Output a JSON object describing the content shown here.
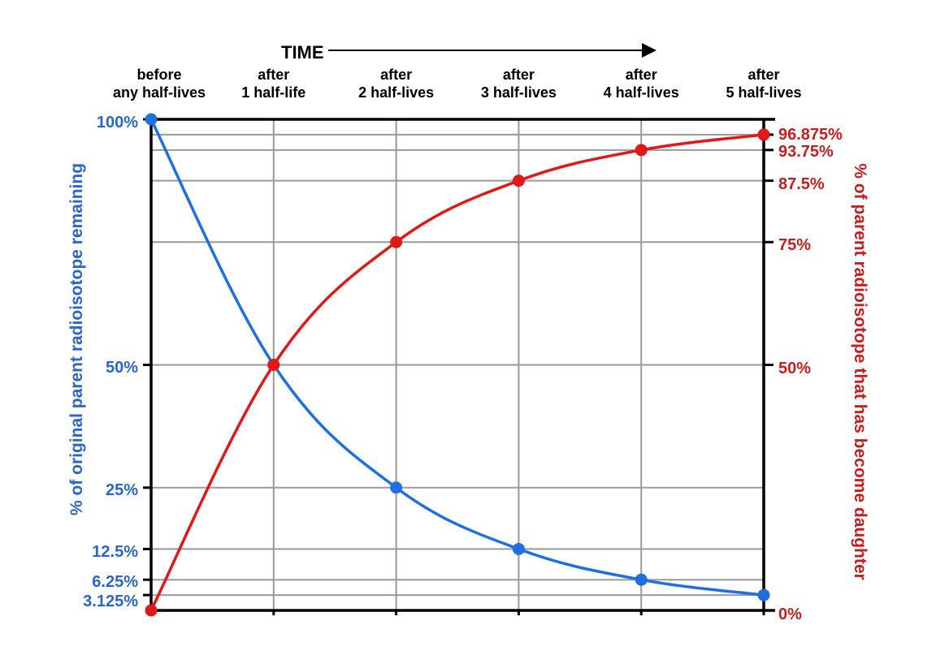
{
  "chart_data": {
    "type": "line",
    "time_label": "TIME",
    "categories": [
      [
        "before",
        "any half-lives"
      ],
      [
        "after",
        "1 half-life"
      ],
      [
        "after",
        "2 half-lives"
      ],
      [
        "after",
        "3 half-lives"
      ],
      [
        "after",
        "4 half-lives"
      ],
      [
        "after",
        "5 half-lives"
      ]
    ],
    "ylabel": "% of original parent radioisotope remaining",
    "ylabel_right": "% of parent radioisotope that has become daughter",
    "ylim": [
      0,
      100
    ],
    "left_ticks": [
      {
        "value": 100,
        "label": "100%"
      },
      {
        "value": 50,
        "label": "50%"
      },
      {
        "value": 25,
        "label": "25%"
      },
      {
        "value": 12.5,
        "label": "12.5%"
      },
      {
        "value": 6.25,
        "label": "6.25%"
      },
      {
        "value": 3.125,
        "label": "3.125%"
      }
    ],
    "right_ticks": [
      {
        "value": 96.875,
        "label": "96.875%"
      },
      {
        "value": 93.75,
        "label": "93.75%"
      },
      {
        "value": 87.5,
        "label": "87.5%"
      },
      {
        "value": 75,
        "label": "75%"
      },
      {
        "value": 50,
        "label": "50%"
      },
      {
        "value": 0,
        "label": "0%"
      }
    ],
    "series": [
      {
        "values": [
          100,
          50,
          25,
          12.5,
          6.25,
          3.125
        ],
        "color": "#1f6fe0",
        "axis": "left"
      },
      {
        "values": [
          0,
          50,
          75,
          87.5,
          93.75,
          96.875
        ],
        "color": "#e01818",
        "axis": "right"
      }
    ],
    "grid": true,
    "colors": {
      "left_axis": "#2a66c9",
      "right_axis": "#c41e1e",
      "grid": "#9a9a9a",
      "frame": "#000000"
    }
  }
}
